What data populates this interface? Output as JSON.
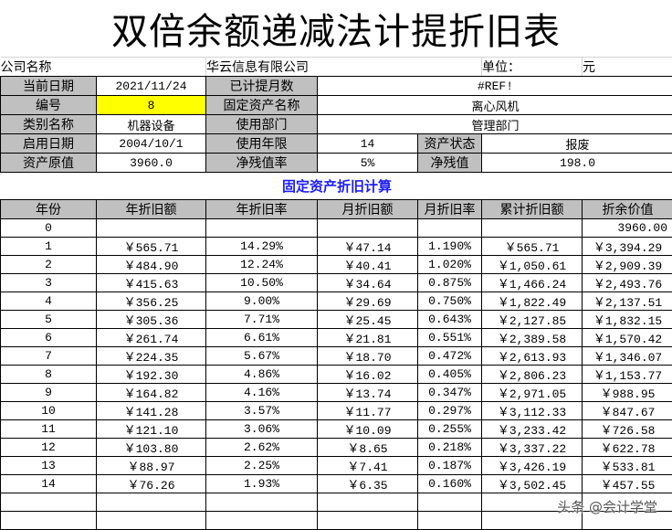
{
  "title": "双倍余额递减法计提折旧表",
  "company": {
    "label": "公司名称",
    "value": "华云信息有限公司",
    "unit_label": "单位：",
    "unit": "元"
  },
  "info": {
    "current_date_label": "当前日期",
    "current_date": "2021/11/24",
    "months_label": "已计提月数",
    "months": "#REF!",
    "id_label": "编号",
    "id": "8",
    "asset_name_label": "固定资产名称",
    "asset_name": "离心风机",
    "category_label": "类别名称",
    "category": "机器设备",
    "dept_label": "使用部门",
    "dept": "管理部门",
    "start_date_label": "启用日期",
    "start_date": "2004/10/1",
    "life_label": "使用年限",
    "life": "14",
    "status_label": "资产状态",
    "status": "报废",
    "original_label": "资产原值",
    "original": "3960.0",
    "residual_rate_label": "净残值率",
    "residual_rate": "5%",
    "residual_label": "净残值",
    "residual": "198.0"
  },
  "section_title": "固定资产折旧计算",
  "table": {
    "headers": [
      "年份",
      "年折旧额",
      "年折旧率",
      "月折旧额",
      "月折旧率",
      "累计折旧额",
      "折余价值"
    ],
    "rows": [
      [
        "0",
        "",
        "",
        "",
        "",
        "",
        "3960.00"
      ],
      [
        "1",
        "￥565.71",
        "14.29%",
        "￥47.14",
        "1.190%",
        "￥565.71",
        "￥3,394.29"
      ],
      [
        "2",
        "￥484.90",
        "12.24%",
        "￥40.41",
        "1.020%",
        "￥1,050.61",
        "￥2,909.39"
      ],
      [
        "3",
        "￥415.63",
        "10.50%",
        "￥34.64",
        "0.875%",
        "￥1,466.24",
        "￥2,493.76"
      ],
      [
        "4",
        "￥356.25",
        "9.00%",
        "￥29.69",
        "0.750%",
        "￥1,822.49",
        "￥2,137.51"
      ],
      [
        "5",
        "￥305.36",
        "7.71%",
        "￥25.45",
        "0.643%",
        "￥2,127.85",
        "￥1,832.15"
      ],
      [
        "6",
        "￥261.74",
        "6.61%",
        "￥21.81",
        "0.551%",
        "￥2,389.58",
        "￥1,570.42"
      ],
      [
        "7",
        "￥224.35",
        "5.67%",
        "￥18.70",
        "0.472%",
        "￥2,613.93",
        "￥1,346.07"
      ],
      [
        "8",
        "￥192.30",
        "4.86%",
        "￥16.02",
        "0.405%",
        "￥2,806.23",
        "￥1,153.77"
      ],
      [
        "9",
        "￥164.82",
        "4.16%",
        "￥13.74",
        "0.347%",
        "￥2,971.05",
        "￥988.95"
      ],
      [
        "10",
        "￥141.28",
        "3.57%",
        "￥11.77",
        "0.297%",
        "￥3,112.33",
        "￥847.67"
      ],
      [
        "11",
        "￥121.10",
        "3.06%",
        "￥10.09",
        "0.255%",
        "￥3,233.42",
        "￥726.58"
      ],
      [
        "12",
        "￥103.80",
        "2.62%",
        "￥8.65",
        "0.218%",
        "￥3,337.22",
        "￥622.78"
      ],
      [
        "13",
        "￥88.97",
        "2.25%",
        "￥7.41",
        "0.187%",
        "￥3,426.19",
        "￥533.81"
      ],
      [
        "14",
        "￥76.26",
        "1.93%",
        "￥6.35",
        "0.160%",
        "￥3,502.45",
        "￥457.55"
      ],
      [
        "",
        "",
        "",
        "",
        "",
        "",
        ""
      ],
      [
        "",
        "",
        "",
        "",
        "",
        "",
        ""
      ]
    ]
  },
  "watermark": "头条 @会计学堂",
  "colors": {
    "label_bg": "#c0c0c0",
    "highlight": "#ffff00",
    "section_title": "#1a1aff"
  }
}
